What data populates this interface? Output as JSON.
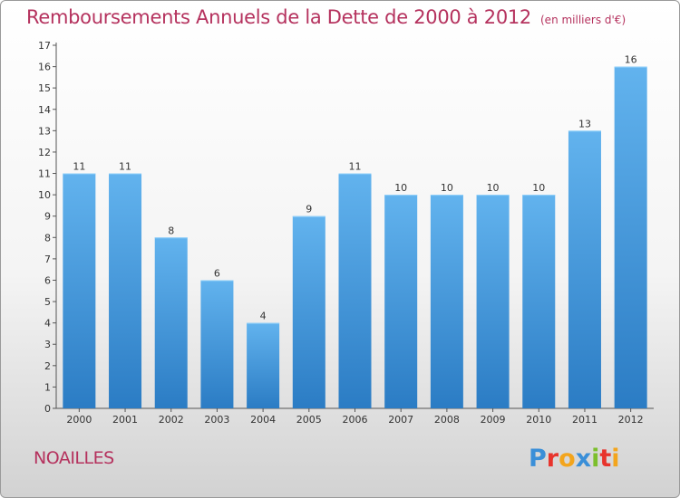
{
  "title": "Remboursements Annuels de la Dette de 2000 à 2012",
  "unit_note": "(en milliers d'€)",
  "commune": "NOAILLES",
  "logo": {
    "text": "Proxiti",
    "letters": [
      {
        "ch": "P",
        "color": "#3a8fd8"
      },
      {
        "ch": "r",
        "color": "#e8342c"
      },
      {
        "ch": "o",
        "color": "#f3a51d"
      },
      {
        "ch": "x",
        "color": "#3a8fd8"
      },
      {
        "ch": "i",
        "color": "#7cbf2c"
      },
      {
        "ch": "t",
        "color": "#e8342c"
      },
      {
        "ch": "i",
        "color": "#f3a51d"
      }
    ]
  },
  "colors": {
    "bar_top": "#62b3ee",
    "bar_bottom": "#2b7cc4",
    "title": "#b5325e",
    "axis": "#555555"
  },
  "chart_data": {
    "type": "bar",
    "categories": [
      "2000",
      "2001",
      "2002",
      "2003",
      "2004",
      "2005",
      "2006",
      "2007",
      "2008",
      "2009",
      "2010",
      "2011",
      "2012"
    ],
    "values": [
      11,
      11,
      8,
      6,
      4,
      9,
      11,
      10,
      10,
      10,
      10,
      13,
      16
    ],
    "ylim": [
      0,
      17
    ],
    "yticks": [
      0,
      1,
      2,
      3,
      4,
      5,
      6,
      7,
      8,
      9,
      10,
      11,
      12,
      13,
      14,
      15,
      16,
      17
    ],
    "grid": false,
    "data_labels": true
  }
}
